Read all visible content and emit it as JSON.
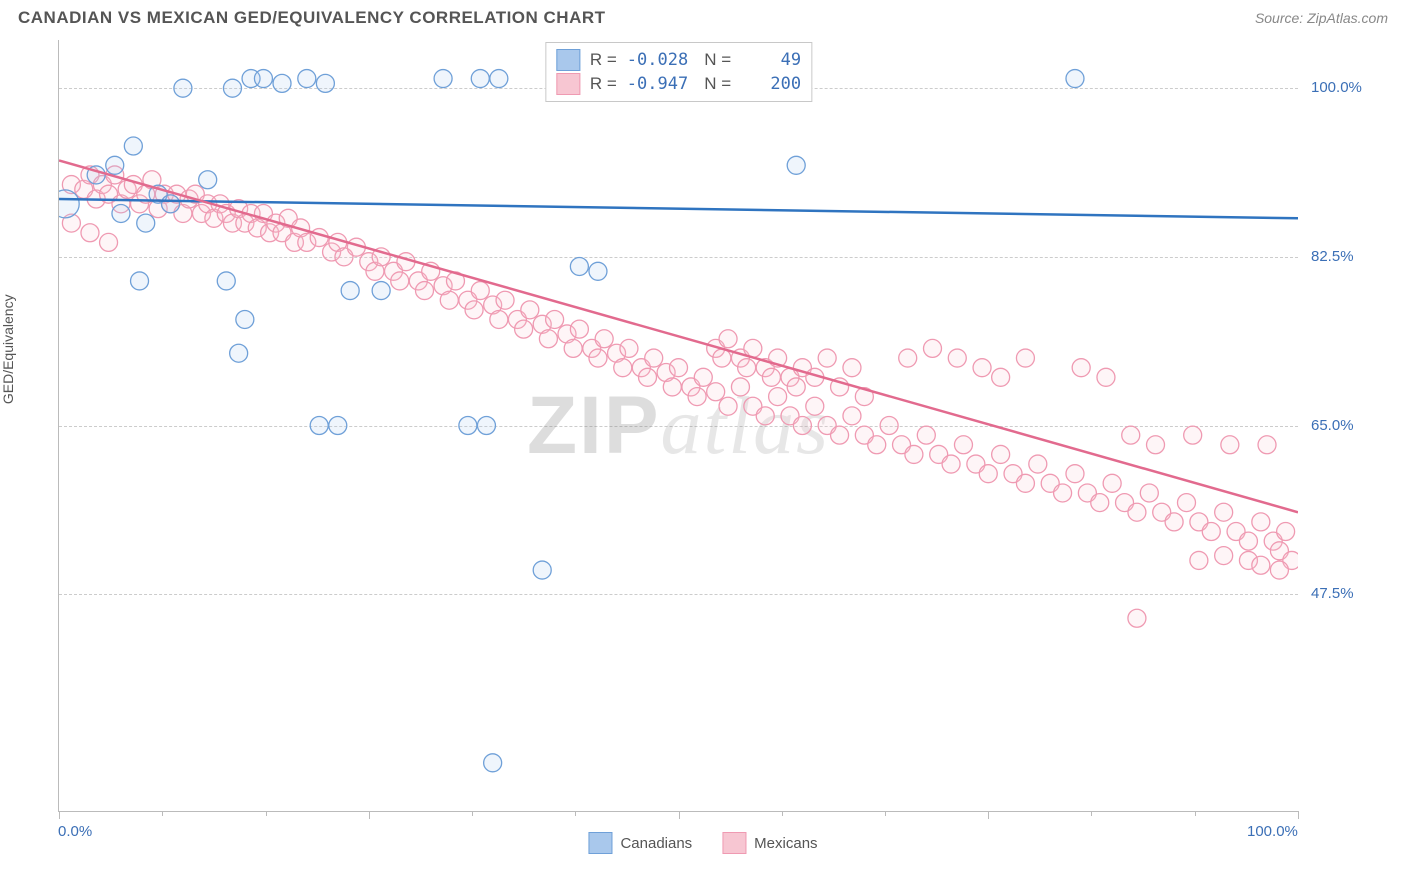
{
  "title": "CANADIAN VS MEXICAN GED/EQUIVALENCY CORRELATION CHART",
  "source": "Source: ZipAtlas.com",
  "ylabel": "GED/Equivalency",
  "watermark_a": "ZIP",
  "watermark_b": "atlas",
  "chart": {
    "type": "scatter",
    "background_color": "#ffffff",
    "grid_color": "#cccccc",
    "axis_color": "#bbbbbb",
    "label_color": "#3b6fb6",
    "xlim": [
      0,
      100
    ],
    "ylim": [
      25,
      105
    ],
    "yticks": [
      47.5,
      65.0,
      82.5,
      100.0
    ],
    "ytick_labels": [
      "47.5%",
      "65.0%",
      "82.5%",
      "100.0%"
    ],
    "xminor_ticks": [
      8.33,
      16.67,
      25,
      33.33,
      41.67,
      50,
      58.33,
      66.67,
      75,
      83.33,
      91.67,
      100
    ],
    "xmajor_ticks": [
      0,
      25,
      50,
      75,
      100
    ],
    "xmin_label": "0.0%",
    "xmax_label": "100.0%",
    "marker_radius": 9,
    "series": [
      {
        "name": "Canadians",
        "color_fill": "#a9c8ec",
        "color_stroke": "#6fa0d8",
        "line_color": "#2f74c0",
        "R": "-0.028",
        "N": "49",
        "reg_line": {
          "x1": 0,
          "y1": 88.5,
          "x2": 100,
          "y2": 86.5
        },
        "points": [
          [
            0.5,
            88,
            14
          ],
          [
            10,
            100,
            9
          ],
          [
            14,
            100,
            9
          ],
          [
            15.5,
            101,
            9
          ],
          [
            16.5,
            101,
            9
          ],
          [
            18,
            100.5,
            9
          ],
          [
            20,
            101,
            9
          ],
          [
            21.5,
            100.5,
            9
          ],
          [
            31,
            101,
            9
          ],
          [
            34,
            101,
            9
          ],
          [
            35.5,
            101,
            9
          ],
          [
            82,
            101,
            9
          ],
          [
            3,
            91,
            9
          ],
          [
            4.5,
            92,
            9
          ],
          [
            5,
            87,
            9
          ],
          [
            6,
            94,
            9
          ],
          [
            8,
            89,
            9
          ],
          [
            9,
            88,
            9
          ],
          [
            12,
            90.5,
            9
          ],
          [
            7,
            86,
            9
          ],
          [
            6.5,
            80,
            9
          ],
          [
            13.5,
            80,
            9
          ],
          [
            15,
            76,
            9
          ],
          [
            14.5,
            72.5,
            9
          ],
          [
            23.5,
            79,
            9
          ],
          [
            26,
            79,
            9
          ],
          [
            42,
            81.5,
            9
          ],
          [
            43.5,
            81,
            9
          ],
          [
            21,
            65,
            9
          ],
          [
            22.5,
            65,
            9
          ],
          [
            33,
            65,
            9
          ],
          [
            34.5,
            65,
            9
          ],
          [
            59.5,
            92,
            9
          ],
          [
            39,
            50,
            9
          ],
          [
            35,
            30,
            9
          ]
        ]
      },
      {
        "name": "Mexicans",
        "color_fill": "#f7c6d2",
        "color_stroke": "#ef9ab2",
        "line_color": "#e26a8e",
        "R": "-0.947",
        "N": "200",
        "reg_line": {
          "x1": 0,
          "y1": 92.5,
          "x2": 100,
          "y2": 56
        },
        "points": [
          [
            1,
            90,
            9
          ],
          [
            2,
            89.5,
            9
          ],
          [
            2.5,
            91,
            9
          ],
          [
            3,
            88.5,
            9
          ],
          [
            3.5,
            90,
            9
          ],
          [
            4,
            89,
            9
          ],
          [
            4.5,
            91,
            9
          ],
          [
            5,
            88,
            9
          ],
          [
            5.5,
            89.5,
            9
          ],
          [
            6,
            90,
            9
          ],
          [
            6.5,
            88,
            9
          ],
          [
            7,
            89,
            9
          ],
          [
            7.5,
            90.5,
            9
          ],
          [
            8,
            87.5,
            9
          ],
          [
            8.5,
            89,
            9
          ],
          [
            9,
            88,
            9
          ],
          [
            9.5,
            89,
            9
          ],
          [
            10,
            87,
            9
          ],
          [
            10.5,
            88.5,
            9
          ],
          [
            11,
            89,
            9
          ],
          [
            11.5,
            87,
            9
          ],
          [
            12,
            88,
            9
          ],
          [
            12.5,
            86.5,
            9
          ],
          [
            13,
            88,
            9
          ],
          [
            13.5,
            87,
            9
          ],
          [
            14,
            86,
            9
          ],
          [
            14.5,
            87.5,
            9
          ],
          [
            15,
            86,
            9
          ],
          [
            15.5,
            87,
            9
          ],
          [
            16,
            85.5,
            9
          ],
          [
            16.5,
            87,
            9
          ],
          [
            17,
            85,
            9
          ],
          [
            17.5,
            86,
            9
          ],
          [
            18,
            85,
            9
          ],
          [
            18.5,
            86.5,
            9
          ],
          [
            19,
            84,
            9
          ],
          [
            19.5,
            85.5,
            9
          ],
          [
            20,
            84,
            9
          ],
          [
            1,
            86,
            9
          ],
          [
            2.5,
            85,
            9
          ],
          [
            4,
            84,
            9
          ],
          [
            21,
            84.5,
            9
          ],
          [
            22,
            83,
            9
          ],
          [
            22.5,
            84,
            9
          ],
          [
            23,
            82.5,
            9
          ],
          [
            24,
            83.5,
            9
          ],
          [
            25,
            82,
            9
          ],
          [
            25.5,
            81,
            9
          ],
          [
            26,
            82.5,
            9
          ],
          [
            27,
            81,
            9
          ],
          [
            27.5,
            80,
            9
          ],
          [
            28,
            82,
            9
          ],
          [
            29,
            80,
            9
          ],
          [
            29.5,
            79,
            9
          ],
          [
            30,
            81,
            9
          ],
          [
            31,
            79.5,
            9
          ],
          [
            31.5,
            78,
            9
          ],
          [
            32,
            80,
            9
          ],
          [
            33,
            78,
            9
          ],
          [
            33.5,
            77,
            9
          ],
          [
            34,
            79,
            9
          ],
          [
            35,
            77.5,
            9
          ],
          [
            35.5,
            76,
            9
          ],
          [
            36,
            78,
            9
          ],
          [
            37,
            76,
            9
          ],
          [
            37.5,
            75,
            9
          ],
          [
            38,
            77,
            9
          ],
          [
            39,
            75.5,
            9
          ],
          [
            39.5,
            74,
            9
          ],
          [
            40,
            76,
            9
          ],
          [
            41,
            74.5,
            9
          ],
          [
            41.5,
            73,
            9
          ],
          [
            42,
            75,
            9
          ],
          [
            43,
            73,
            9
          ],
          [
            43.5,
            72,
            9
          ],
          [
            44,
            74,
            9
          ],
          [
            45,
            72.5,
            9
          ],
          [
            45.5,
            71,
            9
          ],
          [
            46,
            73,
            9
          ],
          [
            47,
            71,
            9
          ],
          [
            47.5,
            70,
            9
          ],
          [
            48,
            72,
            9
          ],
          [
            49,
            70.5,
            9
          ],
          [
            49.5,
            69,
            9
          ],
          [
            50,
            71,
            9
          ],
          [
            51,
            69,
            9
          ],
          [
            51.5,
            68,
            9
          ],
          [
            52,
            70,
            9
          ],
          [
            53,
            73,
            9
          ],
          [
            53.5,
            72,
            9
          ],
          [
            54,
            74,
            9
          ],
          [
            55,
            72,
            9
          ],
          [
            55.5,
            71,
            9
          ],
          [
            56,
            73,
            9
          ],
          [
            57,
            71,
            9
          ],
          [
            57.5,
            70,
            9
          ],
          [
            58,
            72,
            9
          ],
          [
            59,
            70,
            9
          ],
          [
            59.5,
            69,
            9
          ],
          [
            60,
            71,
            9
          ],
          [
            53,
            68.5,
            9
          ],
          [
            54,
            67,
            9
          ],
          [
            55,
            69,
            9
          ],
          [
            56,
            67,
            9
          ],
          [
            57,
            66,
            9
          ],
          [
            58,
            68,
            9
          ],
          [
            59,
            66,
            9
          ],
          [
            60,
            65,
            9
          ],
          [
            61,
            67,
            9
          ],
          [
            62,
            65,
            9
          ],
          [
            63,
            64,
            9
          ],
          [
            64,
            66,
            9
          ],
          [
            61,
            70,
            9
          ],
          [
            62,
            72,
            9
          ],
          [
            63,
            69,
            9
          ],
          [
            64,
            71,
            9
          ],
          [
            65,
            68,
            9
          ],
          [
            65,
            64,
            9
          ],
          [
            66,
            63,
            9
          ],
          [
            67,
            65,
            9
          ],
          [
            68,
            63,
            9
          ],
          [
            68.5,
            72,
            9
          ],
          [
            69,
            62,
            9
          ],
          [
            70,
            64,
            9
          ],
          [
            70.5,
            73,
            9
          ],
          [
            71,
            62,
            9
          ],
          [
            72,
            61,
            9
          ],
          [
            72.5,
            72,
            9
          ],
          [
            73,
            63,
            9
          ],
          [
            74,
            61,
            9
          ],
          [
            74.5,
            71,
            9
          ],
          [
            75,
            60,
            9
          ],
          [
            76,
            62,
            9
          ],
          [
            77,
            60,
            9
          ],
          [
            78,
            59,
            9
          ],
          [
            76,
            70,
            9
          ],
          [
            78,
            72,
            9
          ],
          [
            79,
            61,
            9
          ],
          [
            80,
            59,
            9
          ],
          [
            81,
            58,
            9
          ],
          [
            82,
            60,
            9
          ],
          [
            82.5,
            71,
            9
          ],
          [
            83,
            58,
            9
          ],
          [
            84,
            57,
            9
          ],
          [
            84.5,
            70,
            9
          ],
          [
            85,
            59,
            9
          ],
          [
            86,
            57,
            9
          ],
          [
            86.5,
            64,
            9
          ],
          [
            87,
            56,
            9
          ],
          [
            88,
            58,
            9
          ],
          [
            88.5,
            63,
            9
          ],
          [
            89,
            56,
            9
          ],
          [
            90,
            55,
            9
          ],
          [
            91,
            57,
            9
          ],
          [
            91.5,
            64,
            9
          ],
          [
            92,
            55,
            9
          ],
          [
            93,
            54,
            9
          ],
          [
            94,
            56,
            9
          ],
          [
            94.5,
            63,
            9
          ],
          [
            95,
            54,
            9
          ],
          [
            96,
            53,
            9
          ],
          [
            97,
            55,
            9
          ],
          [
            97.5,
            63,
            9
          ],
          [
            98,
            53,
            9
          ],
          [
            98.5,
            52,
            9
          ],
          [
            99,
            54,
            9
          ],
          [
            99.5,
            51,
            9
          ],
          [
            92,
            51,
            9
          ],
          [
            94,
            51.5,
            9
          ],
          [
            96,
            51,
            9
          ],
          [
            97,
            50.5,
            9
          ],
          [
            98.5,
            50,
            9
          ],
          [
            87,
            45,
            9
          ]
        ]
      }
    ],
    "legend_bottom": [
      {
        "label": "Canadians",
        "fill": "#a9c8ec",
        "stroke": "#6fa0d8"
      },
      {
        "label": "Mexicans",
        "fill": "#f7c6d2",
        "stroke": "#ef9ab2"
      }
    ]
  }
}
